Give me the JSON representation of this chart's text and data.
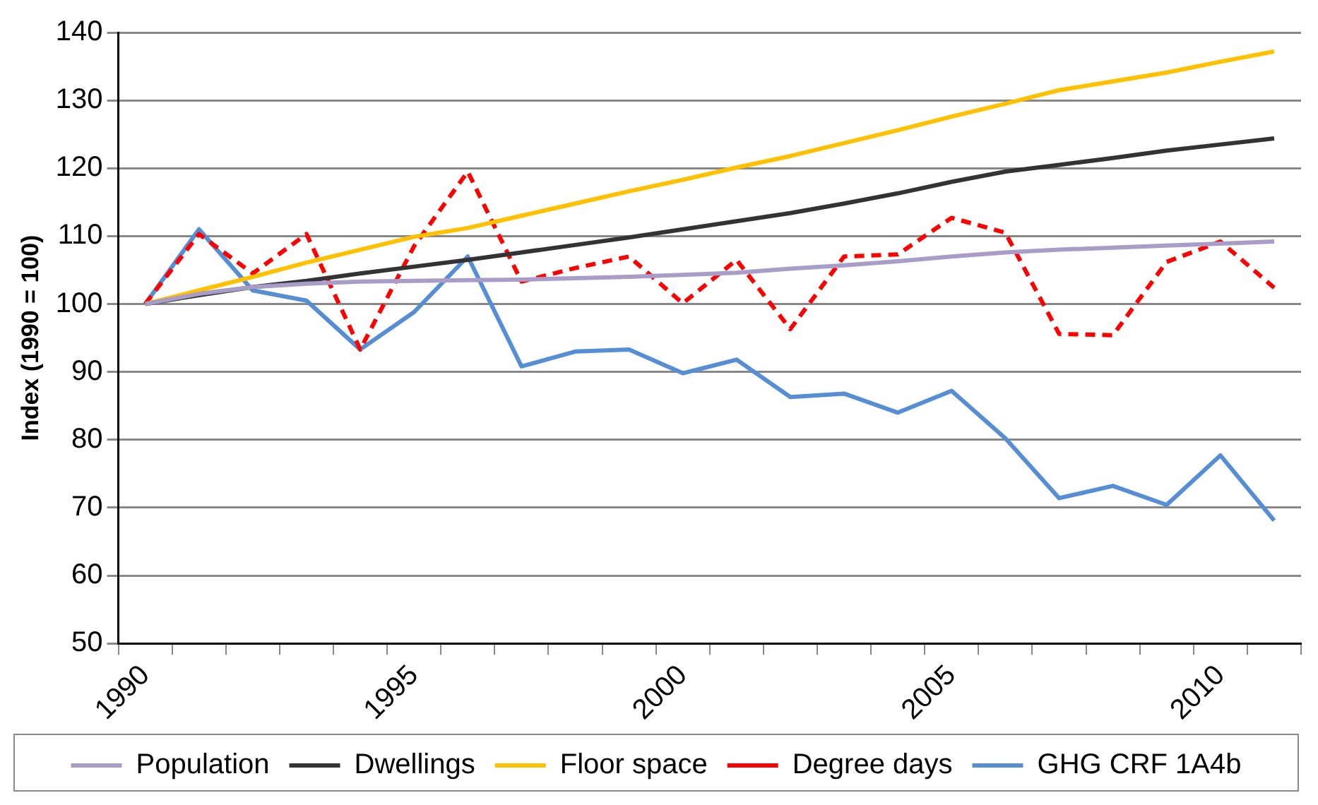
{
  "chart_data": {
    "type": "line",
    "ylabel": "Index (1990 = 100)",
    "categories": [
      "1990",
      null,
      null,
      null,
      null,
      "1995",
      null,
      null,
      null,
      null,
      "2000",
      null,
      null,
      null,
      null,
      "2005",
      null,
      null,
      null,
      null,
      "2010",
      null
    ],
    "ylim": [
      50,
      140
    ],
    "yticks": [
      50,
      60,
      70,
      80,
      90,
      100,
      110,
      120,
      130,
      140
    ],
    "grid": "y",
    "legend": "bottom",
    "marker": "none",
    "line_style": "solid",
    "series": [
      {
        "name": "Population",
        "color": "#a89cc8",
        "values": [
          100,
          101.5,
          102.5,
          103,
          103.3,
          103.4,
          103.5,
          103.6,
          103.8,
          104,
          104.3,
          104.6,
          105.2,
          105.7,
          106.3,
          107,
          107.6,
          108,
          108.3,
          108.6,
          108.9,
          109.2
        ]
      },
      {
        "name": "Dwellings",
        "color": "#333333",
        "values": [
          100,
          101.3,
          102.5,
          103.4,
          104.5,
          105.5,
          106.5,
          107.6,
          108.7,
          109.8,
          111,
          112.2,
          113.4,
          114.8,
          116.3,
          118,
          119.5,
          120.5,
          121.5,
          122.6,
          123.5,
          124.4
        ]
      },
      {
        "name": "Floor space",
        "color": "#ffc000",
        "values": [
          100,
          102,
          104,
          106.1,
          108,
          109.9,
          111.2,
          113,
          114.8,
          116.6,
          118.3,
          120.1,
          121.8,
          123.7,
          125.6,
          127.6,
          129.5,
          131.5,
          132.8,
          134.1,
          135.7,
          137.2
        ]
      },
      {
        "name": "Degree days",
        "color": "#ff0000",
        "line_style": "dashed",
        "values": [
          100,
          110.3,
          104.5,
          110.3,
          93.3,
          108.5,
          119.5,
          103.3,
          105.3,
          107,
          100.1,
          106.5,
          96.3,
          107,
          107.3,
          112.7,
          110.5,
          95.6,
          95.4,
          106.2,
          109.2,
          102.4
        ]
      },
      {
        "name": "GHG CRF 1A4b",
        "color": "#558ed5",
        "values": [
          100,
          111,
          102,
          100.5,
          93.3,
          98.8,
          107,
          90.8,
          93,
          93.3,
          89.8,
          91.8,
          86.3,
          86.8,
          84,
          87.2,
          80.2,
          71.4,
          73.2,
          70.4,
          77.7,
          68.1
        ]
      }
    ]
  }
}
